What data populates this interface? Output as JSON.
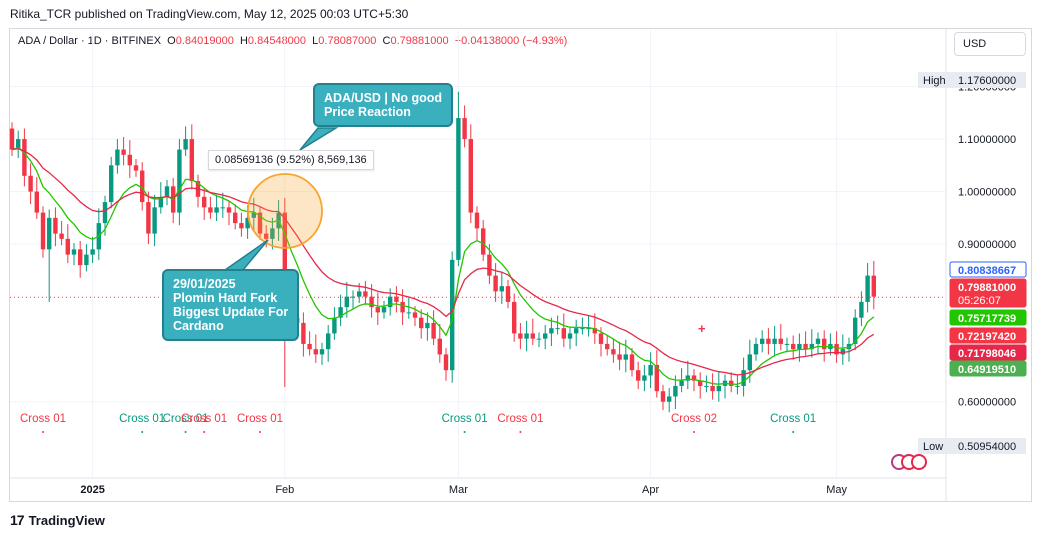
{
  "header": {
    "published_by": "Ritika_TCR published on TradingView.com, May 12, 2025 00:03 UTC+5:30",
    "symbol": "ADA / Dollar · 1D · BITFINEX",
    "open_label": "O",
    "open": "0.84019000",
    "high_label": "H",
    "high": "0.84548000",
    "low_label": "L",
    "low": "0.78087000",
    "close_label": "C",
    "close": "0.79881000",
    "change": "−0.04138000 (−4.93%)"
  },
  "currency_button": "USD",
  "brand": {
    "logo": "17",
    "name": "TradingView"
  },
  "colors": {
    "up": "#089981",
    "down": "#f23645",
    "ema_fast": "#22c600",
    "ema_slow": "#e8264a",
    "callout": "#3aafbe",
    "highlight": "#f8a530"
  },
  "callouts": {
    "top": "ADA/USD | No good\nPrice Reaction",
    "bottom": "29/01/2025\nPlomin Hard Fork\nBiggest Update For\nCardano"
  },
  "measure_label": "0.08569136 (9.52%) 8,569,136",
  "chart_data": {
    "type": "candlestick",
    "y_ticks": [
      1.2,
      1.1,
      1.0,
      0.9,
      0.6
    ],
    "y_tick_labels": [
      "1.20000000",
      "1.10000000",
      "1.00000000",
      "0.90000000",
      "0.60000000"
    ],
    "ylim": [
      0.47,
      1.26
    ],
    "x_ticks": [
      {
        "label": "2025",
        "day": 13
      },
      {
        "label": "Feb",
        "day": 44
      },
      {
        "label": "Mar",
        "day": 72
      },
      {
        "label": "Apr",
        "day": 103
      },
      {
        "label": "May",
        "day": 133
      }
    ],
    "high_marker": {
      "label": "High",
      "value": "1.17600000"
    },
    "low_marker": {
      "label": "Low",
      "value": "0.50954000"
    },
    "price_labels": [
      {
        "value": "0.80838667",
        "color": "#2962ff",
        "style": "outline"
      },
      {
        "value": "0.79881000",
        "color": "#f23645",
        "style": "fill",
        "countdown": "05:26:07"
      },
      {
        "value": "0.75717739",
        "color": "#22c600",
        "style": "fill"
      },
      {
        "value": "0.72197420",
        "color": "#f23645",
        "style": "fill"
      },
      {
        "value": "0.71798046",
        "color": "#e8264a",
        "style": "fill"
      },
      {
        "value": "0.64919510",
        "color": "#4caf50",
        "style": "fill"
      }
    ],
    "signals": [
      {
        "label": "Cross 01",
        "day": 5,
        "color": "#f23645"
      },
      {
        "label": "Cross 01",
        "day": 21,
        "color": "#089981"
      },
      {
        "label": "Cross 01",
        "day": 28,
        "color": "#089981"
      },
      {
        "label": "Cross 01",
        "day": 31,
        "color": "#f23645"
      },
      {
        "label": "Cross 01",
        "day": 40,
        "color": "#f23645"
      },
      {
        "label": "Cross 01",
        "day": 73,
        "color": "#089981"
      },
      {
        "label": "Cross 01",
        "day": 82,
        "color": "#f23645"
      },
      {
        "label": "Cross 02",
        "day": 110,
        "color": "#f23645"
      },
      {
        "label": "Cross 01",
        "day": 126,
        "color": "#089981"
      }
    ],
    "close": [
      1.08,
      1.1,
      1.03,
      1.0,
      0.96,
      0.89,
      0.95,
      0.92,
      0.91,
      0.88,
      0.89,
      0.86,
      0.88,
      0.89,
      0.94,
      0.98,
      1.05,
      1.08,
      1.07,
      1.05,
      1.04,
      0.98,
      0.92,
      0.97,
      0.99,
      1.01,
      0.96,
      1.08,
      1.1,
      1.02,
      0.99,
      0.97,
      0.96,
      0.97,
      0.97,
      0.96,
      0.94,
      0.93,
      0.95,
      0.96,
      0.92,
      0.91,
      0.93,
      0.96,
      0.82,
      0.76,
      0.75,
      0.71,
      0.7,
      0.69,
      0.7,
      0.73,
      0.76,
      0.78,
      0.8,
      0.8,
      0.81,
      0.8,
      0.78,
      0.77,
      0.78,
      0.8,
      0.79,
      0.77,
      0.77,
      0.76,
      0.74,
      0.75,
      0.72,
      0.69,
      0.66,
      0.87,
      1.14,
      1.1,
      0.96,
      0.93,
      0.88,
      0.84,
      0.81,
      0.82,
      0.79,
      0.73,
      0.72,
      0.73,
      0.72,
      0.72,
      0.73,
      0.74,
      0.74,
      0.72,
      0.73,
      0.74,
      0.74,
      0.74,
      0.73,
      0.71,
      0.7,
      0.69,
      0.68,
      0.69,
      0.66,
      0.64,
      0.65,
      0.67,
      0.62,
      0.6,
      0.61,
      0.63,
      0.64,
      0.65,
      0.64,
      0.63,
      0.63,
      0.62,
      0.63,
      0.64,
      0.63,
      0.63,
      0.66,
      0.69,
      0.71,
      0.72,
      0.71,
      0.72,
      0.71,
      0.71,
      0.7,
      0.71,
      0.7,
      0.71,
      0.72,
      0.7,
      0.71,
      0.69,
      0.7,
      0.71,
      0.76,
      0.79,
      0.84,
      0.8
    ]
  }
}
